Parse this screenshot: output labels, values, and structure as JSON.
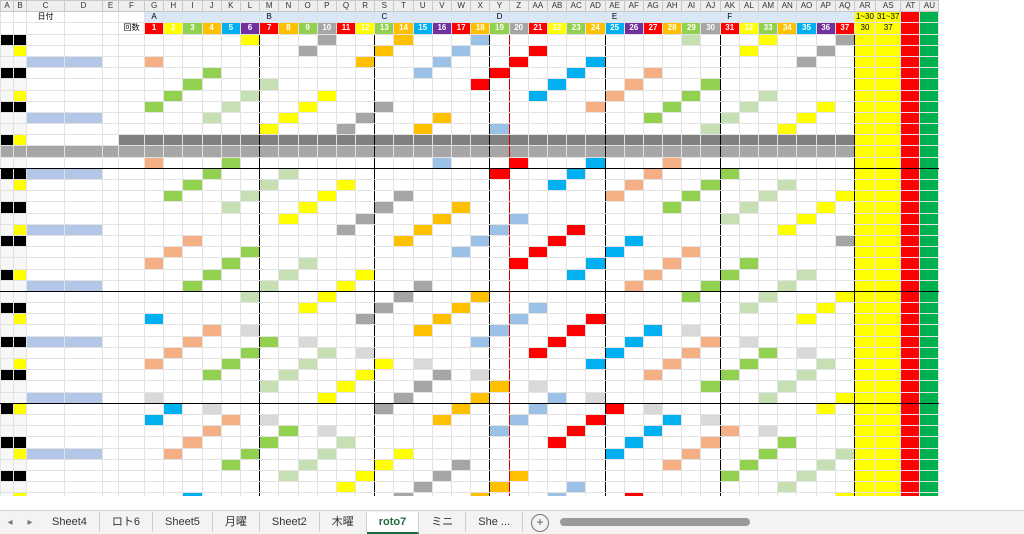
{
  "columns": [
    "A",
    "B",
    "C",
    "D",
    "E",
    "F",
    "G",
    "H",
    "I",
    "J",
    "K",
    "L",
    "M",
    "N",
    "O",
    "P",
    "Q",
    "R",
    "S",
    "T",
    "U",
    "V",
    "W",
    "X",
    "Y",
    "Z",
    "AA",
    "AB",
    "AC",
    "AD",
    "AE",
    "AF",
    "AG",
    "AH",
    "AI",
    "AJ",
    "AK",
    "AL",
    "AM",
    "AN",
    "AO",
    "AP",
    "AQ",
    "AR",
    "AS",
    "AT",
    "AU"
  ],
  "header": {
    "date_label": "日付",
    "number_label": "回数",
    "groups": [
      "A",
      "B",
      "C",
      "D",
      "E",
      "F"
    ],
    "numbers": [
      "1",
      "2",
      "3",
      "4",
      "5",
      "6",
      "7",
      "8",
      "9",
      "10",
      "11",
      "12",
      "13",
      "14",
      "15",
      "16",
      "17",
      "18",
      "19",
      "20",
      "21",
      "22",
      "23",
      "24",
      "25",
      "26",
      "27",
      "28",
      "29",
      "30",
      "31",
      "32",
      "33",
      "34",
      "35",
      "36",
      "37"
    ],
    "count_labels": [
      "1~30",
      "31~37"
    ],
    "count_row": [
      "30",
      "37"
    ]
  },
  "colors": {
    "yellow": "#ffff00",
    "red": "#ff0000",
    "green": "#00b050",
    "orange": "#ffc000",
    "gray": "#a6a6a6",
    "dark_gray": "#808080",
    "blue_accent": "#1d6b3a"
  },
  "tabs": {
    "items": [
      "Sheet4",
      "ロト6",
      "Sheet5",
      "月曜",
      "Sheet2",
      "木曜",
      "roto7",
      "ミニ",
      "She ..."
    ],
    "active": "roto7",
    "add_label": "+"
  }
}
